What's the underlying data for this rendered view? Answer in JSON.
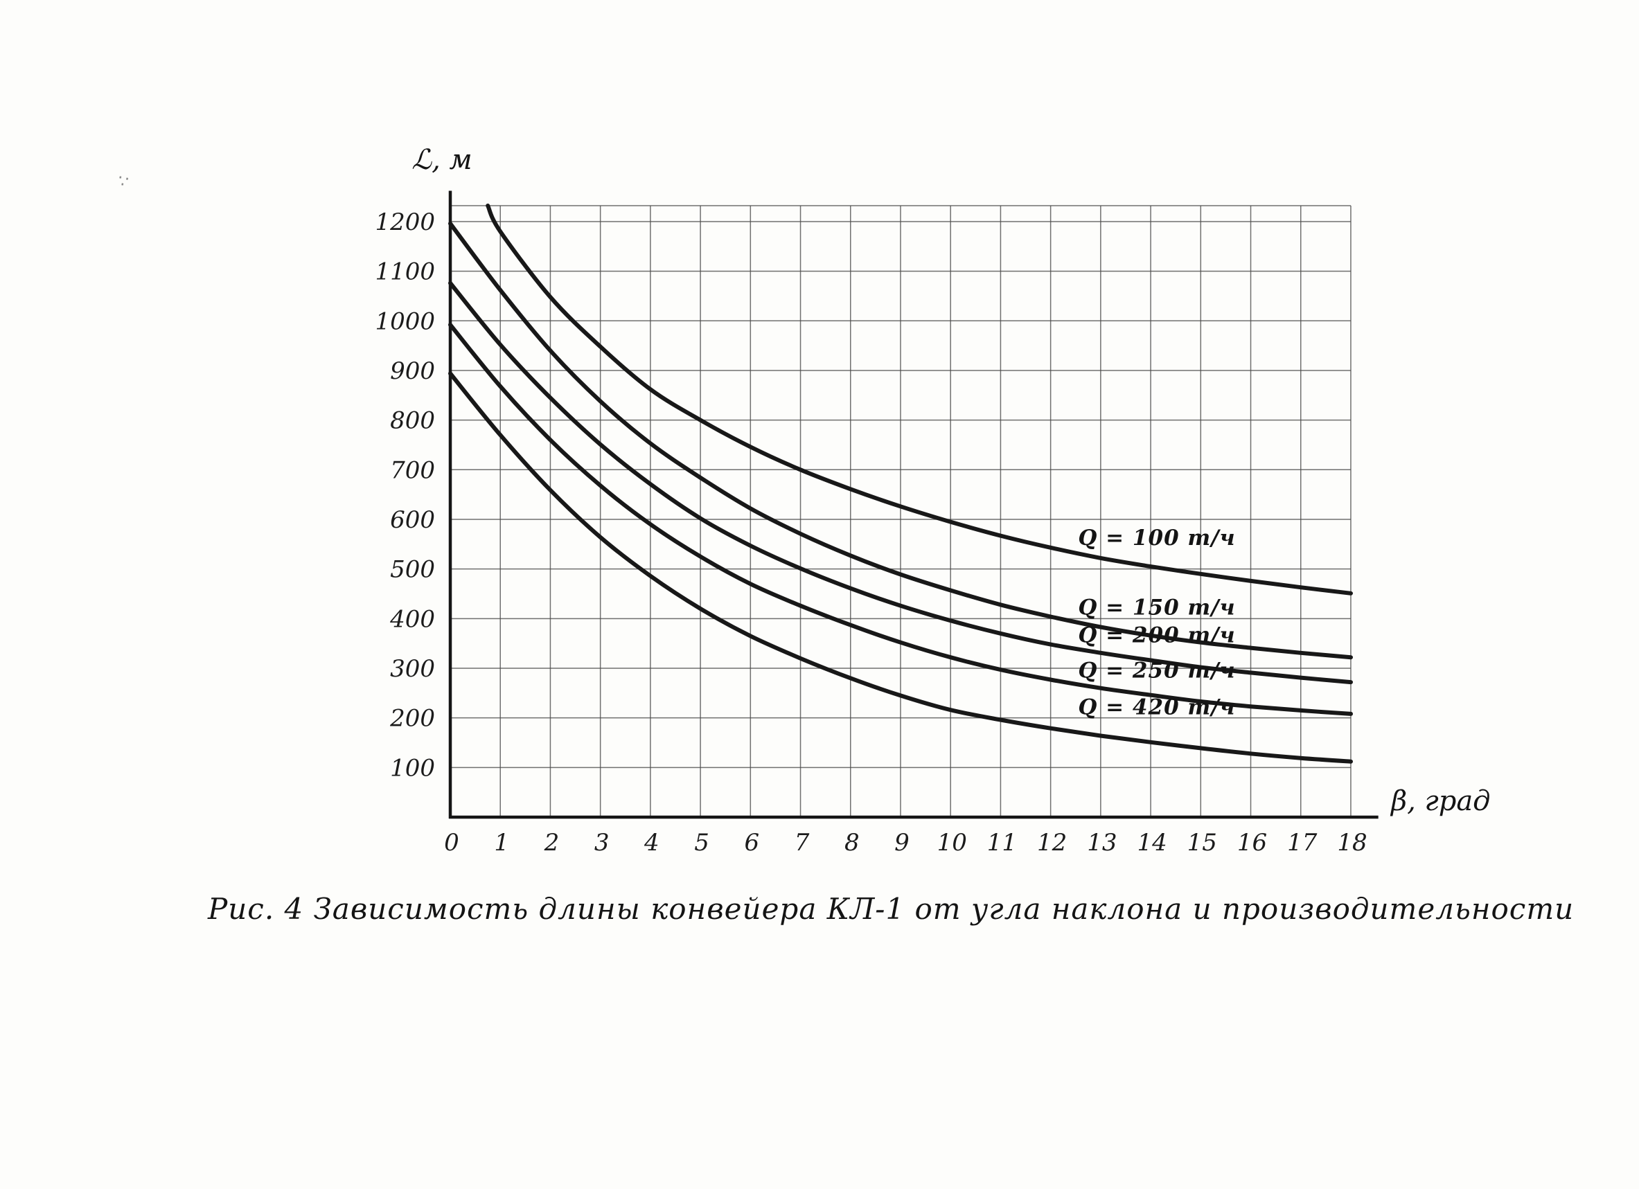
{
  "page": {
    "artifact_mark": "∵"
  },
  "figure": {
    "caption": "Рис. 4   Зависимость длины конвейера КЛ-1 от угла наклона и производительности"
  },
  "chart_data": {
    "type": "line",
    "title": "",
    "xlabel": "β, град",
    "ylabel": "ℒ, м",
    "xlim": [
      0,
      18
    ],
    "ylim": [
      0,
      1250
    ],
    "x_ticks": [
      0,
      1,
      2,
      3,
      4,
      5,
      6,
      7,
      8,
      9,
      10,
      11,
      12,
      13,
      14,
      15,
      16,
      17,
      18
    ],
    "y_ticks": [
      100,
      200,
      300,
      400,
      500,
      600,
      700,
      800,
      900,
      1000,
      1100,
      1200
    ],
    "grid": true,
    "legend_position": "on-curve-labels",
    "line_color": "#181818",
    "grid_color": "#4c4c4c",
    "series": [
      {
        "id": "q100",
        "name": "Q = 100 т/ч",
        "label": "Q = 100 т/ч",
        "x": [
          0.75,
          1,
          2,
          3,
          4,
          5,
          6,
          7,
          8,
          9,
          10,
          11,
          12,
          13,
          14,
          15,
          16,
          17,
          18
        ],
        "values": [
          1232,
          1180,
          1048,
          948,
          862,
          800,
          746,
          700,
          661,
          626,
          595,
          567,
          543,
          522,
          505,
          490,
          476,
          463,
          451
        ],
        "label_x": 12.55,
        "label_y": 548
      },
      {
        "id": "q150",
        "name": "Q = 150 т/ч",
        "label": "Q = 150 т/ч",
        "x": [
          0,
          1,
          2,
          3,
          4,
          5,
          6,
          7,
          8,
          9,
          10,
          11,
          12,
          13,
          14,
          15,
          16,
          17,
          18
        ],
        "values": [
          1196,
          1062,
          940,
          838,
          753,
          684,
          622,
          571,
          527,
          489,
          457,
          428,
          404,
          383,
          366,
          352,
          341,
          331,
          322
        ],
        "label_x": 12.55,
        "label_y": 408
      },
      {
        "id": "q200",
        "name": "Q = 200 т/ч",
        "label": "Q = 200 т/ч",
        "x": [
          0,
          1,
          2,
          3,
          4,
          5,
          6,
          7,
          8,
          9,
          10,
          11,
          12,
          13,
          14,
          15,
          16,
          17,
          18
        ],
        "values": [
          1076,
          952,
          845,
          751,
          671,
          602,
          547,
          501,
          461,
          426,
          396,
          370,
          348,
          331,
          316,
          302,
          291,
          281,
          272
        ],
        "label_x": 12.55,
        "label_y": 352
      },
      {
        "id": "q250",
        "name": "Q = 250 т/ч",
        "label": "Q = 250 т/ч",
        "x": [
          0,
          1,
          2,
          3,
          4,
          5,
          6,
          7,
          8,
          9,
          10,
          11,
          12,
          13,
          14,
          15,
          16,
          17,
          18
        ],
        "values": [
          992,
          868,
          760,
          668,
          590,
          525,
          470,
          426,
          387,
          352,
          322,
          297,
          277,
          260,
          246,
          233,
          223,
          215,
          208
        ],
        "label_x": 12.55,
        "label_y": 281
      },
      {
        "id": "q420",
        "name": "Q = 420 т/ч",
        "label": "Q = 420 т/ч",
        "x": [
          0,
          1,
          2,
          3,
          4,
          5,
          6,
          7,
          8,
          9,
          10,
          11,
          12,
          13,
          14,
          15,
          16,
          17,
          18
        ],
        "values": [
          894,
          770,
          659,
          564,
          486,
          420,
          365,
          320,
          280,
          245,
          216,
          196,
          179,
          164,
          151,
          139,
          128,
          119,
          112
        ],
        "label_x": 12.55,
        "label_y": 207
      }
    ]
  }
}
